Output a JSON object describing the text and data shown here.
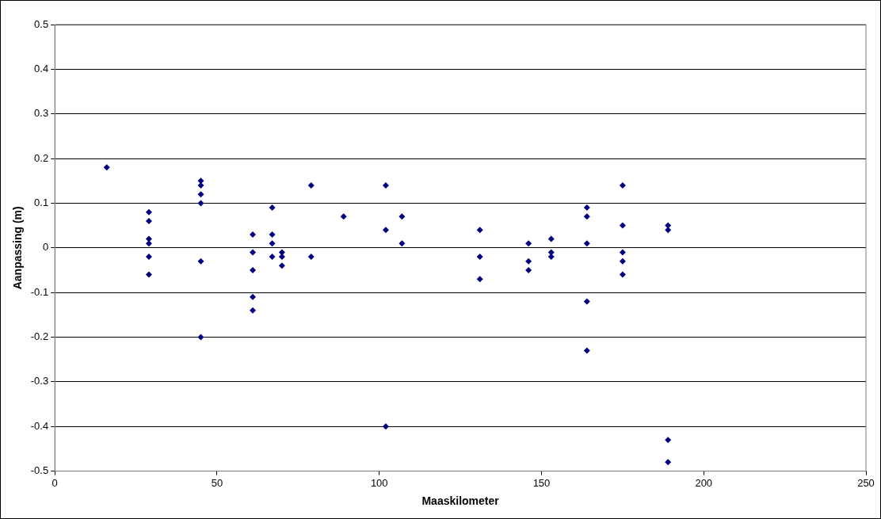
{
  "chart_data": {
    "type": "scatter",
    "xlabel": "Maaskilometer",
    "ylabel": "Aanpassing (m)",
    "xlim": [
      0,
      250
    ],
    "xticks": [
      0,
      50,
      100,
      150,
      200,
      250
    ],
    "ylim": [
      -0.5,
      0.5
    ],
    "yticks": [
      -0.5,
      -0.4,
      -0.3,
      -0.2,
      -0.1,
      0,
      0.1,
      0.2,
      0.3,
      0.4,
      0.5
    ],
    "grid": "y",
    "legend": false,
    "marker": "diamond",
    "series": [
      {
        "color": "#000080",
        "x": [
          16,
          29,
          29,
          29,
          29,
          29,
          29,
          45,
          45,
          45,
          45,
          45,
          45,
          61,
          61,
          61,
          61,
          61,
          67,
          67,
          67,
          67,
          70,
          70,
          70,
          79,
          79,
          89,
          102,
          102,
          102,
          107,
          107,
          131,
          131,
          131,
          146,
          146,
          146,
          153,
          153,
          153,
          164,
          164,
          164,
          164,
          164,
          175,
          175,
          175,
          175,
          175,
          189,
          189,
          189,
          189
        ],
        "values": [
          0.18,
          0.08,
          0.06,
          0.02,
          0.01,
          -0.02,
          -0.06,
          0.15,
          0.14,
          0.12,
          0.1,
          -0.03,
          -0.2,
          0.03,
          -0.01,
          -0.05,
          -0.11,
          -0.14,
          0.09,
          0.03,
          0.01,
          -0.02,
          -0.01,
          -0.02,
          -0.04,
          0.14,
          -0.02,
          0.07,
          0.14,
          0.04,
          -0.4,
          0.07,
          0.01,
          0.04,
          -0.02,
          -0.07,
          0.01,
          -0.03,
          -0.05,
          0.02,
          -0.01,
          -0.02,
          0.09,
          0.07,
          0.01,
          -0.12,
          -0.23,
          0.14,
          0.05,
          -0.01,
          -0.03,
          -0.06,
          0.05,
          0.04,
          -0.43,
          -0.48
        ]
      }
    ]
  }
}
